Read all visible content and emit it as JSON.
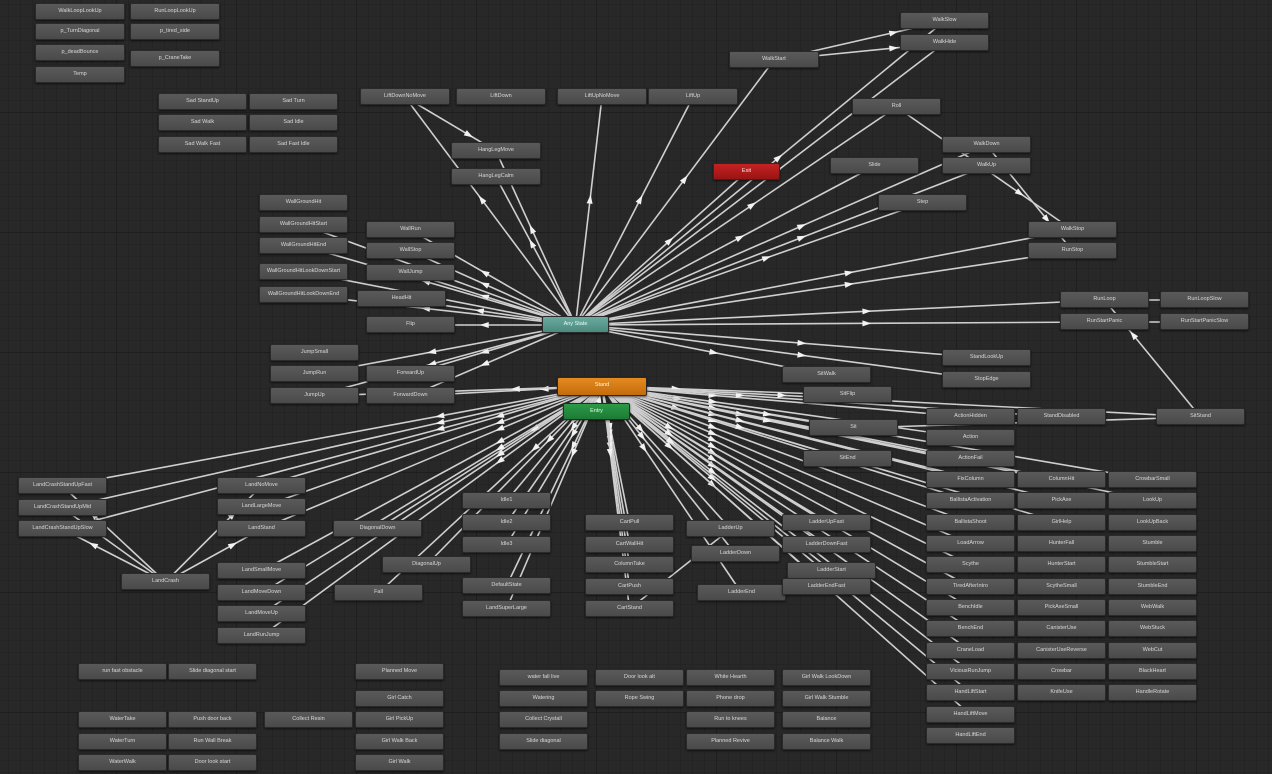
{
  "graph": {
    "special": {
      "any_state": "Any State",
      "default_state": "Stand",
      "entry": "Entry",
      "exit": "Exit"
    },
    "states": [
      "WalkLoopLookUp",
      "RunLoopLookUp",
      "p_TurnDiagonal",
      "p_tired_side",
      "p_deadBounce",
      "p_CraneTake",
      "Temp",
      "Sad StandUp",
      "Sad Turn",
      "Sad Walk",
      "Sad Idle",
      "Sad Walk Fast",
      "Sad Fast Idle",
      "LiftDownNoMove",
      "LiftDown",
      "LiftUpNoMove",
      "LiftUp",
      "HangLegMove",
      "HangLegCalm",
      "WalkStart",
      "WalkSlow",
      "WalkHide",
      "Roll",
      "Slide",
      "Step",
      "WalkDown",
      "WalkUp",
      "WalkStop",
      "RunStop",
      "RunLoop",
      "RunLoopSlow",
      "RunStartPanic",
      "RunStartPanicSlow",
      "WallGroundHit",
      "WallGroundHitStart",
      "WallGroundHitEnd",
      "WallGroundHitLookDownStart",
      "WallGroundHitLookDownEnd",
      "WallRun",
      "WallStop",
      "WallJump",
      "HeadHit",
      "Flip",
      "JumpSmall",
      "JumpRun",
      "JumpUp",
      "ForwardUp",
      "ForwardDown",
      "SitWalk",
      "SitFlip",
      "Sit",
      "SitEnd",
      "StandLookUp",
      "StopEdge",
      "ActionHidden",
      "StandDisabled",
      "SitStand",
      "Action",
      "ActionFail",
      "FixColumn",
      "ColumnHit",
      "CrowbarSmall",
      "BallistaActivation",
      "PickAxe",
      "LookUp",
      "BallistaShoot",
      "GirlHelp",
      "LookUpBack",
      "LoadArrow",
      "HunterFall",
      "Stumble",
      "Scythe",
      "HunterStart",
      "StumbleStart",
      "TiredAfterIntro",
      "ScytheSmall",
      "StumbleEnd",
      "BenchIdle",
      "PickAxeSmall",
      "WebWalk",
      "BenchEnd",
      "CanisterUse",
      "WebStuck",
      "CraneLoad",
      "CanisterUseReverse",
      "WebCut",
      "ViciousRunJump",
      "Crowbar",
      "BlackHeart",
      "HandLiftStart",
      "KnifeUse",
      "HandleRotate",
      "HandLiftMove",
      "HandLiftEnd",
      "LandCrashStandUpFast",
      "LandCrashStandUpMid",
      "LandCrashStandUpSlow",
      "LandCrash",
      "LandNoMove",
      "LandLargeMove",
      "LandStand",
      "LandSmallMove",
      "LandMoveDown",
      "LandMoveUp",
      "LandRunJump",
      "DiagonalDown",
      "DiagonalUp",
      "Fall",
      "Idle1",
      "Idle2",
      "Idle3",
      "DefaultState",
      "LandSuperLarge",
      "CartPull",
      "CartWallHit",
      "ColumnTake",
      "CartPush",
      "CartStand",
      "LadderUp",
      "LadderDown",
      "LadderEnd",
      "LadderUpFast",
      "LadderDownFast",
      "LadderStart",
      "LadderEndFast",
      "run fast obstacle",
      "Slide diagonal start",
      "WaterTake",
      "Push door back",
      "Collect Resin",
      "WaterTurn",
      "Run Wall Break",
      "WaterWalk",
      "Door look start",
      "Planned Move",
      "Girl Catch",
      "Girl PickUp",
      "Girl Walk Back",
      "Girl Walk",
      "water fall live",
      "Door look alt",
      "White Hearth",
      "Girl Walk LookDown",
      "Watering",
      "Rope Swing",
      "Phone drop",
      "Girl Walk Stumble",
      "Collect Crystall",
      "Run to knees",
      "Balance",
      "Slide diagonal",
      "Planned Revive",
      "Balance Walk"
    ]
  }
}
